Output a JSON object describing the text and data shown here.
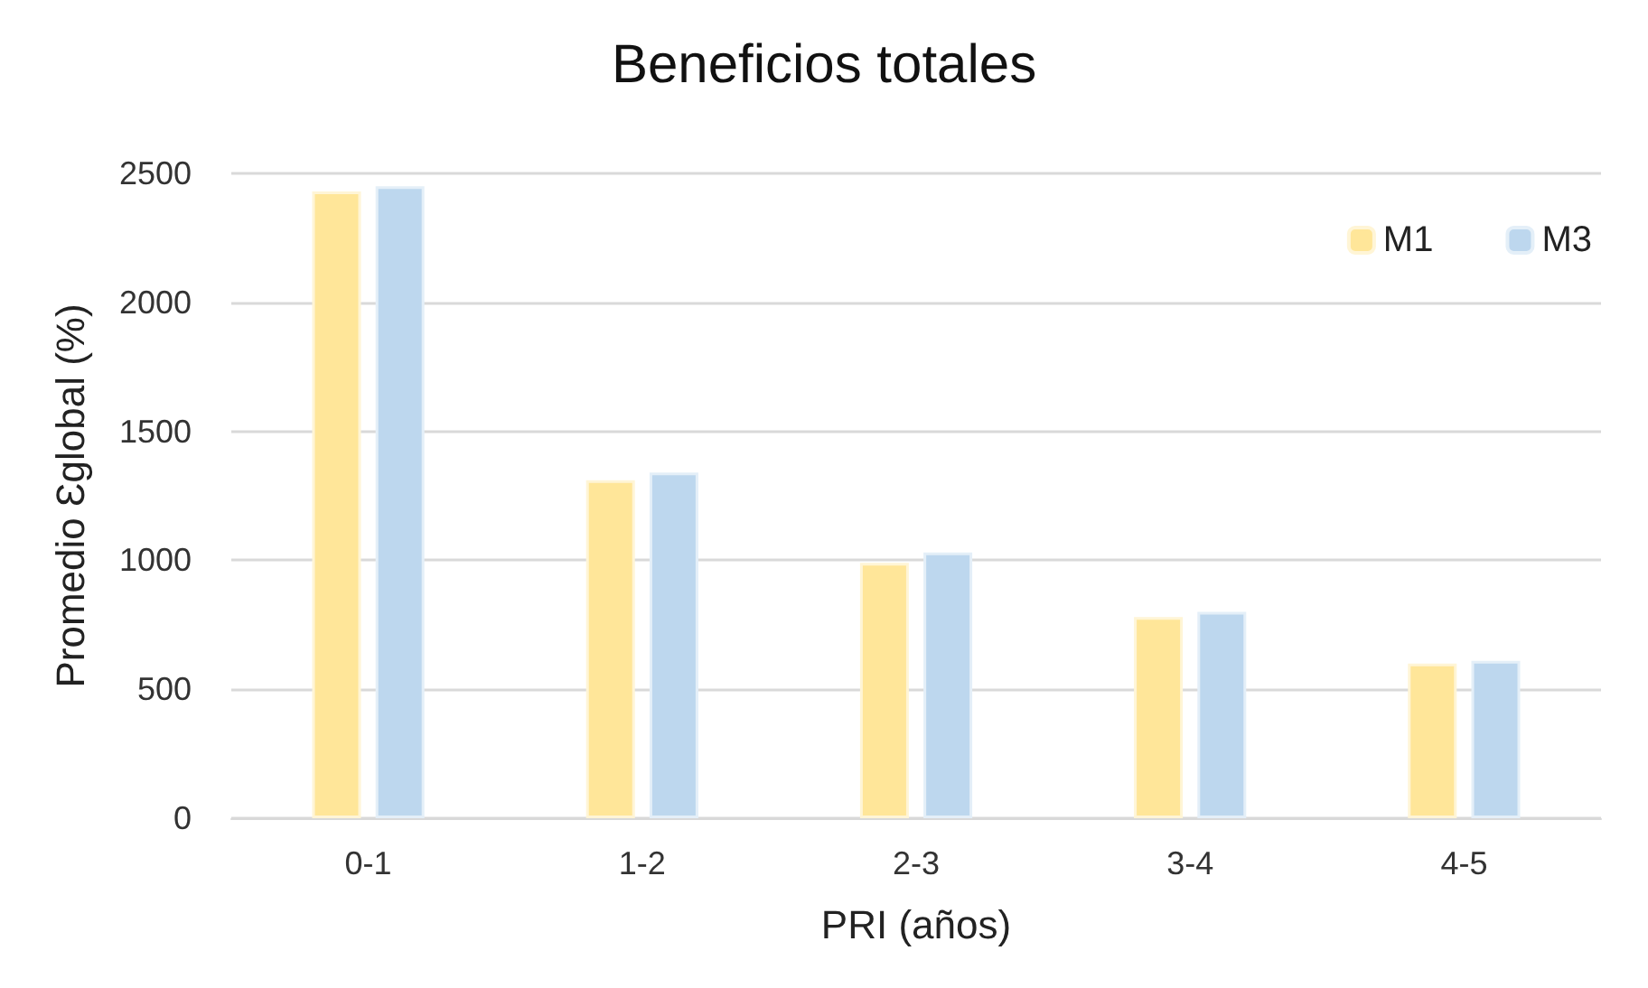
{
  "chart_data": {
    "type": "bar",
    "title": "Beneficios totales",
    "xlabel": "PRI (años)",
    "ylabel": "Promedio Ɛglobal (%)",
    "categories": [
      "0-1",
      "1-2",
      "2-3",
      "3-4",
      "4-5"
    ],
    "series": [
      {
        "name": "M1",
        "color": "#ffe699",
        "values": [
          2430,
          1310,
          990,
          780,
          600
        ]
      },
      {
        "name": "M3",
        "color": "#bdd7ee",
        "values": [
          2450,
          1340,
          1030,
          800,
          610
        ]
      }
    ],
    "ylim": [
      0,
      2500
    ],
    "yticks": [
      0,
      500,
      1000,
      1500,
      2000,
      2500
    ],
    "grid": "y",
    "legend": "top right"
  }
}
